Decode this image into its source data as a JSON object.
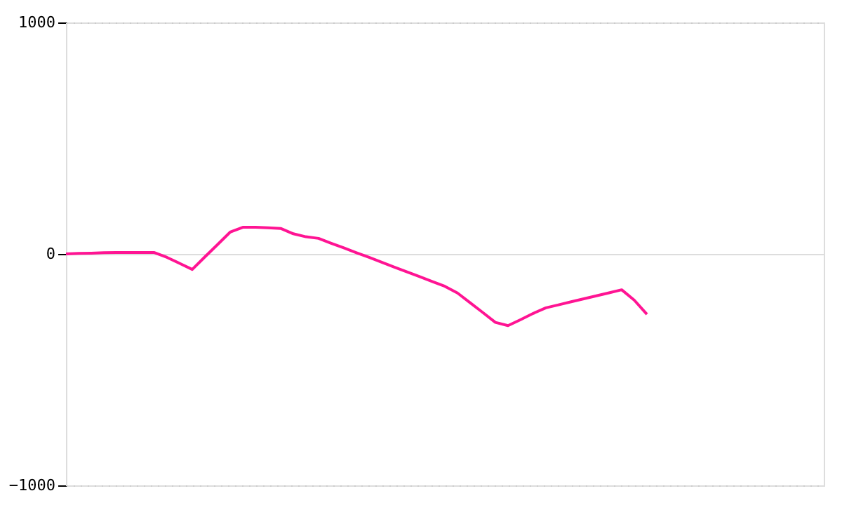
{
  "chart_data": {
    "type": "line",
    "categories": [
      null,
      null,
      null,
      null,
      null,
      null,
      null,
      null,
      null,
      null,
      null,
      null,
      null,
      null,
      null,
      null,
      null,
      null,
      null,
      null,
      null,
      null,
      null,
      null,
      null,
      null,
      null,
      null,
      null,
      null,
      null,
      null,
      null,
      null,
      null,
      null,
      null,
      null,
      null,
      null,
      null,
      null,
      null,
      null,
      null,
      null,
      null,
      null,
      null,
      null,
      null,
      null,
      null,
      null,
      null,
      null,
      null,
      null,
      null,
      null,
      null
    ],
    "series": [
      {
        "color": "#ff1493",
        "values": [
          0,
          2,
          3,
          5,
          6,
          6,
          6,
          6,
          -15,
          -41,
          -67,
          -13,
          40,
          94,
          115,
          115,
          113,
          110,
          87,
          74,
          67,
          46,
          26,
          5,
          -15,
          -36,
          -57,
          -78,
          -98,
          -119,
          -140,
          -169,
          -211,
          -253,
          -296,
          -310,
          -284,
          -257,
          -233,
          -220,
          -207,
          -194,
          -181,
          -168,
          -155,
          -200,
          -261,
          null,
          null,
          null,
          null,
          null,
          null,
          null,
          null,
          null,
          null,
          null,
          null,
          null,
          null
        ]
      }
    ],
    "ylim": [
      -1000,
      1000
    ],
    "yticks": [
      -1000,
      0,
      1000
    ],
    "tick_labels": "y",
    "grid": "y",
    "marker": "none",
    "line_style": "solid"
  }
}
